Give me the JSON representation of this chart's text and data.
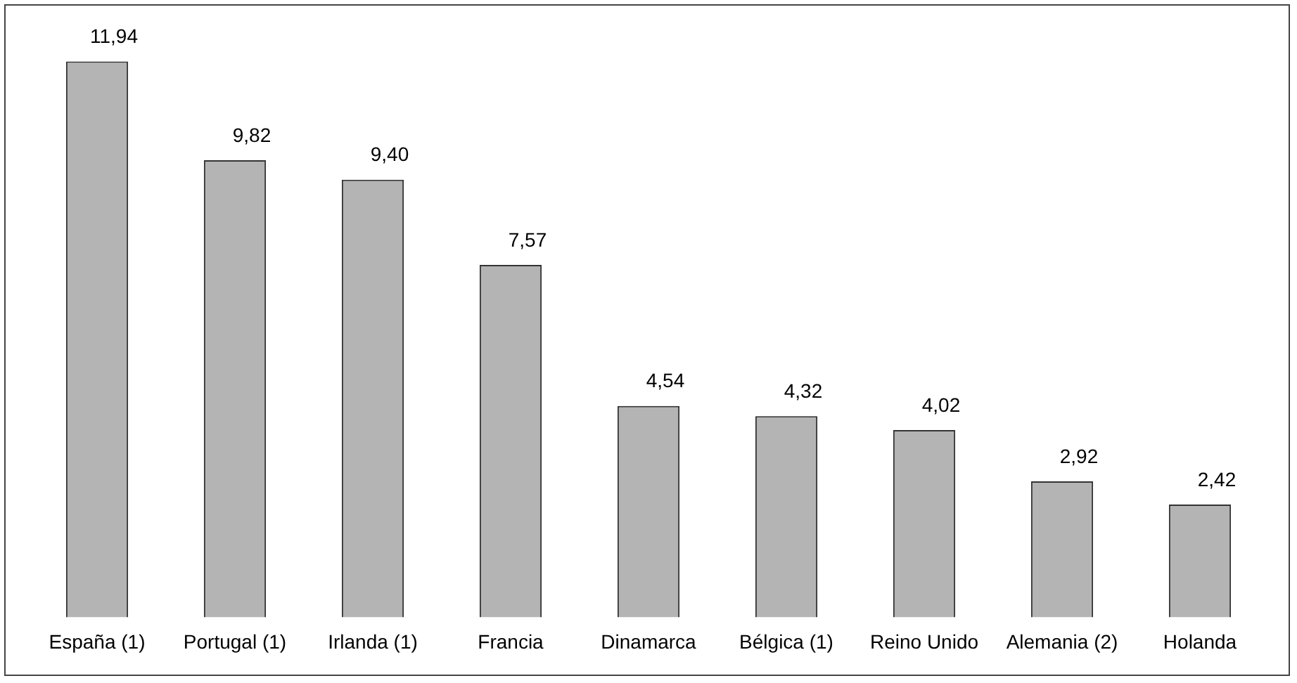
{
  "chart_data": {
    "type": "bar",
    "categories": [
      "España (1)",
      "Portugal (1)",
      "Irlanda (1)",
      "Francia",
      "Dinamarca",
      "Bélgica (1)",
      "Reino Unido",
      "Alemania (2)",
      "Holanda"
    ],
    "values": [
      11.94,
      9.82,
      9.4,
      7.57,
      4.54,
      4.32,
      4.02,
      2.92,
      2.42
    ],
    "value_labels": [
      "11,94",
      "9,82",
      "9,40",
      "7,57",
      "4,54",
      "4,32",
      "4,02",
      "2,92",
      "2,42"
    ],
    "color": "#b4b4b4",
    "grid": false,
    "legend": false,
    "tick_labels": "x"
  }
}
